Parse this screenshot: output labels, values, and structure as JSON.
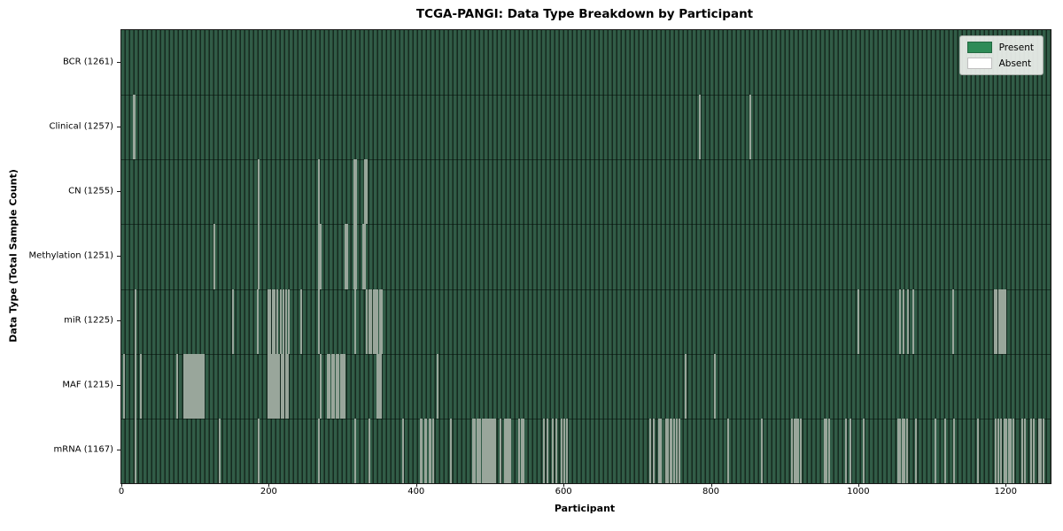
{
  "chart_data": {
    "type": "heatmap",
    "title": "TCGA-PANGI: Data Type Breakdown by Participant",
    "xlabel": "Participant",
    "ylabel": "Data Type (Total Sample Count)",
    "n_participants": 1261,
    "x_ticks": [
      0,
      200,
      400,
      600,
      800,
      1000,
      1200
    ],
    "grid": false,
    "legend": {
      "position": "upper right",
      "entries": [
        {
          "label": "Present",
          "color": "#2e8b57"
        },
        {
          "label": "Absent",
          "color": "#ffffff"
        }
      ]
    },
    "colors": {
      "stripe_light": "#315c47",
      "stripe_mid": "#24412f",
      "stripe_dark": "#152a21",
      "absent_line": "#99a69b",
      "row_divider": "rgba(4,14,9,0.55)"
    },
    "rows": [
      {
        "data_type": "BCR",
        "total": 1261,
        "label": "BCR (1261)",
        "absent_positions": []
      },
      {
        "data_type": "Clinical",
        "total": 1257,
        "label": "Clinical (1257)",
        "absent_positions": [
          17,
          18,
          785,
          853
        ]
      },
      {
        "data_type": "CN",
        "total": 1255,
        "label": "CN (1255)",
        "absent_positions": [
          186,
          268,
          316,
          318,
          330,
          333
        ]
      },
      {
        "data_type": "Methylation",
        "total": 1251,
        "label": "Methylation (1251)",
        "absent_positions": [
          126,
          186,
          268,
          271,
          304,
          306,
          316,
          318,
          328,
          331
        ]
      },
      {
        "data_type": "miR",
        "total": 1225,
        "label": "miR (1225)",
        "absent_positions": [
          19,
          152,
          185,
          199,
          202,
          205,
          208,
          212,
          216,
          220,
          224,
          227,
          244,
          268,
          317,
          333,
          336,
          339,
          342,
          345,
          348,
          351,
          354,
          1000,
          1057,
          1062,
          1068,
          1075,
          1129,
          1185,
          1188,
          1191,
          1194,
          1196,
          1198,
          1200
        ]
      },
      {
        "data_type": "MAF",
        "total": 1215,
        "label": "MAF (1215)",
        "absent_positions": [
          4,
          19,
          26,
          76,
          85,
          87,
          89,
          91,
          93,
          95,
          97,
          99,
          101,
          103,
          105,
          107,
          109,
          112,
          199,
          201,
          203,
          205,
          207,
          209,
          211,
          214,
          217,
          220,
          223,
          226,
          270,
          280,
          283,
          286,
          289,
          292,
          295,
          298,
          301,
          303,
          348,
          350,
          352,
          429,
          766,
          806
        ]
      },
      {
        "data_type": "mRNA",
        "total": 1167,
        "label": "mRNA (1167)",
        "absent_positions": [
          19,
          134,
          186,
          268,
          317,
          337,
          382,
          406,
          408,
          412,
          414,
          418,
          420,
          423,
          447,
          477,
          480,
          483,
          485,
          487,
          491,
          493,
          494,
          497,
          499,
          500,
          503,
          505,
          507,
          514,
          521,
          523,
          524,
          526,
          528,
          540,
          543,
          546,
          574,
          578,
          585,
          590,
          597,
          601,
          605,
          718,
          722,
          730,
          732,
          739,
          742,
          745,
          747,
          750,
          754,
          757,
          824,
          869,
          910,
          913,
          916,
          919,
          922,
          954,
          957,
          960,
          983,
          989,
          1007,
          1054,
          1057,
          1060,
          1063,
          1066,
          1078,
          1105,
          1118,
          1130,
          1162,
          1186,
          1190,
          1194,
          1198,
          1201,
          1204,
          1207,
          1210,
          1222,
          1226,
          1234,
          1238,
          1245,
          1248,
          1251
        ]
      }
    ]
  }
}
